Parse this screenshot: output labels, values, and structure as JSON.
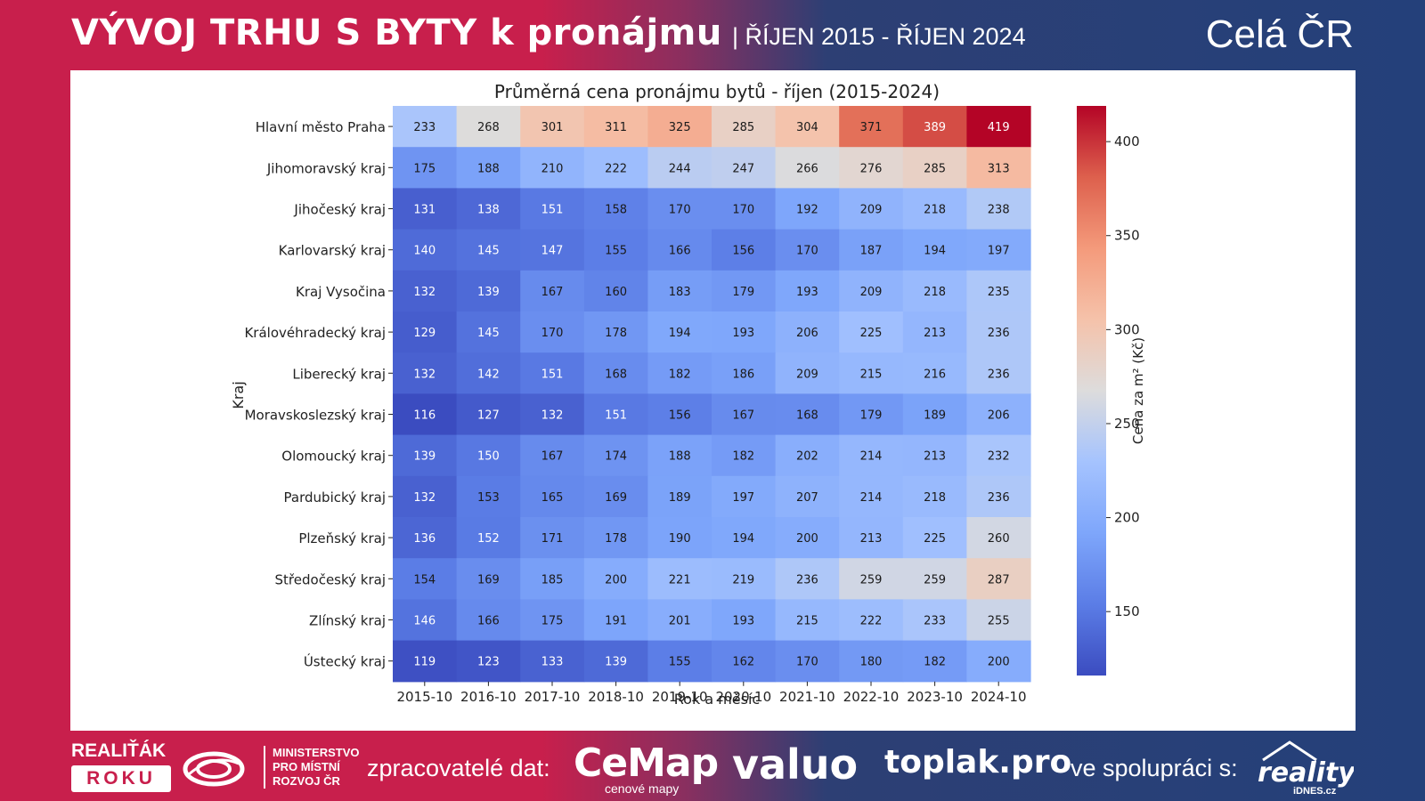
{
  "header": {
    "title": "VÝVOJ TRHU S BYTY k pronájmu",
    "subtitle": "| ŘÍJEN 2015 - ŘÍJEN 2024",
    "region": "Celá ČR"
  },
  "chart_data": {
    "type": "heatmap",
    "title": "Průměrná cena pronájmu bytů - říjen (2015-2024)",
    "xlabel": "Rok a měsíc",
    "ylabel": "Kraj",
    "colorbar_label": "Cena za m² (Kč)",
    "colormap": "coolwarm",
    "vmin": 116,
    "vmax": 419,
    "colorbar_ticks": [
      150,
      200,
      250,
      300,
      350,
      400
    ],
    "columns": [
      "2015-10",
      "2016-10",
      "2017-10",
      "2018-10",
      "2019-10",
      "2020-10",
      "2021-10",
      "2022-10",
      "2023-10",
      "2024-10"
    ],
    "rows": [
      "Hlavní město Praha",
      "Jihomoravský kraj",
      "Jihočeský kraj",
      "Karlovarský kraj",
      "Kraj Vysočina",
      "Královéhradecký kraj",
      "Liberecký kraj",
      "Moravskoslezský kraj",
      "Olomoucký kraj",
      "Pardubický kraj",
      "Plzeňský kraj",
      "Středočeský kraj",
      "Zlínský kraj",
      "Ústecký kraj"
    ],
    "values": [
      [
        233,
        268,
        301,
        311,
        325,
        285,
        304,
        371,
        389,
        419
      ],
      [
        175,
        188,
        210,
        222,
        244,
        247,
        266,
        276,
        285,
        313
      ],
      [
        131,
        138,
        151,
        158,
        170,
        170,
        192,
        209,
        218,
        238
      ],
      [
        140,
        145,
        147,
        155,
        166,
        156,
        170,
        187,
        194,
        197
      ],
      [
        132,
        139,
        167,
        160,
        183,
        179,
        193,
        209,
        218,
        235
      ],
      [
        129,
        145,
        170,
        178,
        194,
        193,
        206,
        225,
        213,
        236
      ],
      [
        132,
        142,
        151,
        168,
        182,
        186,
        209,
        215,
        216,
        236
      ],
      [
        116,
        127,
        132,
        151,
        156,
        167,
        168,
        179,
        189,
        206
      ],
      [
        139,
        150,
        167,
        174,
        188,
        182,
        202,
        214,
        213,
        232
      ],
      [
        132,
        153,
        165,
        169,
        189,
        197,
        207,
        214,
        218,
        236
      ],
      [
        136,
        152,
        171,
        178,
        190,
        194,
        200,
        213,
        225,
        260
      ],
      [
        154,
        169,
        185,
        200,
        221,
        219,
        236,
        259,
        259,
        287
      ],
      [
        146,
        166,
        175,
        191,
        201,
        193,
        215,
        222,
        233,
        255
      ],
      [
        119,
        123,
        133,
        139,
        155,
        162,
        170,
        180,
        182,
        200
      ]
    ]
  },
  "footer": {
    "award_line1": "REALIŤÁK",
    "award_line2": "ROKU",
    "ministry_line1": "MINISTERSTVO",
    "ministry_line2": "PRO MÍSTNÍ",
    "ministry_line3": "ROZVOJ ČR",
    "processors_label": "zpracovatelé dat:",
    "cemap": "CeMap",
    "cemap_sub": "cenové mapy",
    "valuo": "valuo",
    "toplak": "toplak.pro",
    "cooperation_label": "ve spolupráci s:",
    "reality": "reality",
    "reality_sub": "iDNES.cz"
  }
}
